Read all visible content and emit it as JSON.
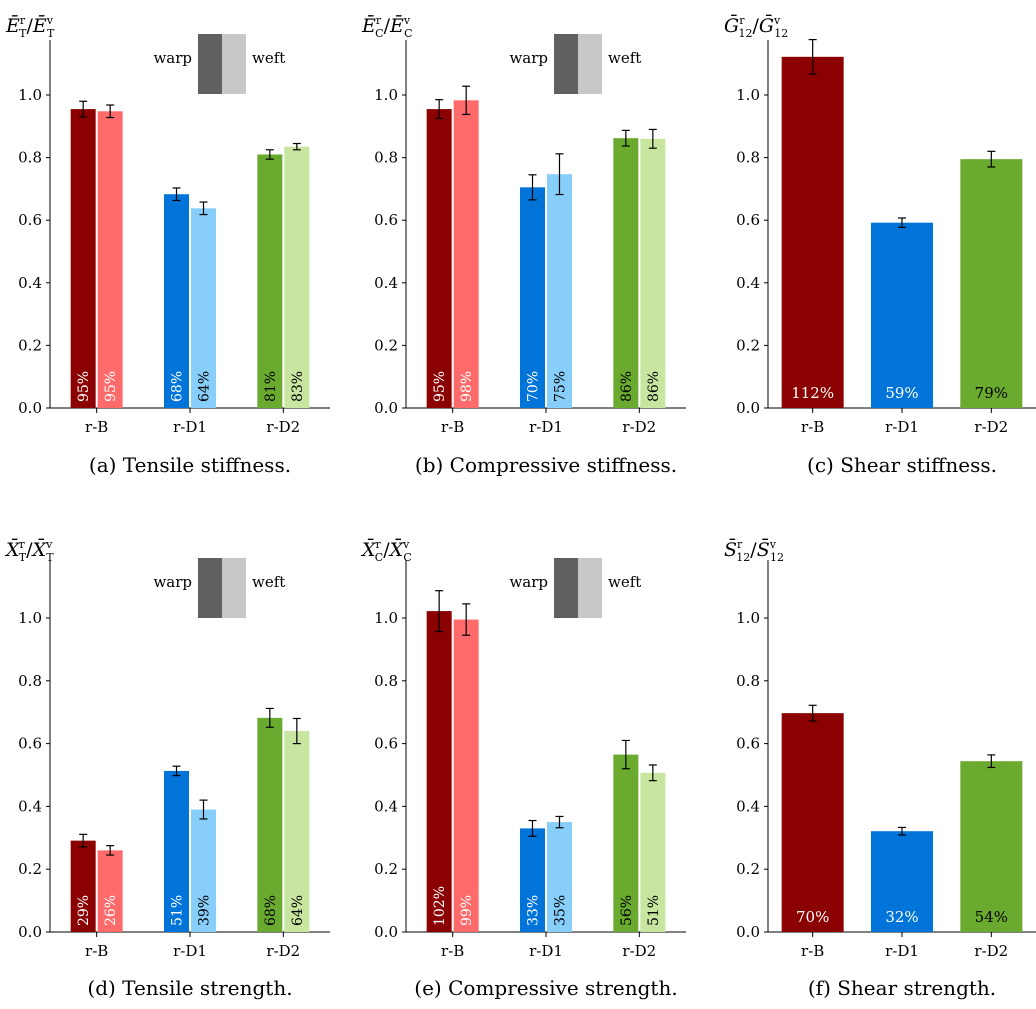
{
  "legend": {
    "warp": "warp",
    "weft": "weft",
    "warp_color": "#606060",
    "weft_color": "#c8c8c8"
  },
  "colors": {
    "r-B": {
      "warp": "#8b0000",
      "weft": "#ff6b6b"
    },
    "r-D1": {
      "warp": "#0074d9",
      "weft": "#87cefa"
    },
    "r-D2": {
      "warp": "#6aaa2e",
      "weft": "#c8e6a0"
    }
  },
  "chart_data": [
    {
      "type": "bar",
      "panel": "a",
      "caption": "(a) Tensile stiffness.",
      "ylabel": "Ē_T^r/Ē_T^v",
      "ylim": [
        0,
        1.15
      ],
      "yticks": [
        "0.0",
        "0.2",
        "0.4",
        "0.6",
        "0.8",
        "1.0"
      ],
      "legend": true,
      "label_rotation": "vertical",
      "categories": [
        "r-B",
        "r-D1",
        "r-D2"
      ],
      "series": [
        {
          "name": "warp",
          "values": [
            0.955,
            0.683,
            0.81
          ],
          "errors": [
            0.025,
            0.02,
            0.015
          ],
          "labels": [
            "95%",
            "68%",
            "81%"
          ]
        },
        {
          "name": "weft",
          "values": [
            0.948,
            0.638,
            0.835
          ],
          "errors": [
            0.02,
            0.02,
            0.01
          ],
          "labels": [
            "95%",
            "64%",
            "83%"
          ]
        }
      ]
    },
    {
      "type": "bar",
      "panel": "b",
      "caption": "(b) Compressive stiffness.",
      "ylabel": "Ē_C^r/Ē_C^v",
      "ylim": [
        0,
        1.15
      ],
      "yticks": [
        "0.0",
        "0.2",
        "0.4",
        "0.6",
        "0.8",
        "1.0"
      ],
      "legend": true,
      "label_rotation": "vertical",
      "categories": [
        "r-B",
        "r-D1",
        "r-D2"
      ],
      "series": [
        {
          "name": "warp",
          "values": [
            0.955,
            0.705,
            0.862
          ],
          "errors": [
            0.03,
            0.04,
            0.025
          ],
          "labels": [
            "95%",
            "70%",
            "86%"
          ]
        },
        {
          "name": "weft",
          "values": [
            0.983,
            0.747,
            0.86
          ],
          "errors": [
            0.045,
            0.065,
            0.03
          ],
          "labels": [
            "98%",
            "75%",
            "86%"
          ]
        }
      ]
    },
    {
      "type": "bar",
      "panel": "c",
      "caption": "(c) Shear stiffness.",
      "ylabel": "Ḡ_12^r/Ḡ_12^v",
      "ylim": [
        0,
        1.15
      ],
      "yticks": [
        "0.0",
        "0.2",
        "0.4",
        "0.6",
        "0.8",
        "1.0"
      ],
      "legend": false,
      "label_rotation": "horizontal",
      "categories": [
        "r-B",
        "r-D1",
        "r-D2"
      ],
      "series": [
        {
          "name": "",
          "values": [
            1.122,
            0.592,
            0.795
          ],
          "errors": [
            0.055,
            0.015,
            0.025
          ],
          "labels": [
            "112%",
            "59%",
            "79%"
          ]
        }
      ]
    },
    {
      "type": "bar",
      "panel": "d",
      "caption": "(d) Tensile strength.",
      "ylabel": "X̄_T^r/X̄_T^v",
      "ylim": [
        0,
        1.15
      ],
      "yticks": [
        "0.0",
        "0.2",
        "0.4",
        "0.6",
        "0.8",
        "1.0"
      ],
      "legend": true,
      "label_rotation": "vertical",
      "categories": [
        "r-B",
        "r-D1",
        "r-D2"
      ],
      "series": [
        {
          "name": "warp",
          "values": [
            0.291,
            0.513,
            0.682
          ],
          "errors": [
            0.02,
            0.015,
            0.03
          ],
          "labels": [
            "29%",
            "51%",
            "68%"
          ]
        },
        {
          "name": "weft",
          "values": [
            0.26,
            0.39,
            0.64
          ],
          "errors": [
            0.015,
            0.03,
            0.04
          ],
          "labels": [
            "26%",
            "39%",
            "64%"
          ]
        }
      ]
    },
    {
      "type": "bar",
      "panel": "e",
      "caption": "(e) Compressive strength.",
      "ylabel": "X̄_C^r/X̄_C^v",
      "ylim": [
        0,
        1.15
      ],
      "yticks": [
        "0.0",
        "0.2",
        "0.4",
        "0.6",
        "0.8",
        "1.0"
      ],
      "legend": true,
      "label_rotation": "vertical",
      "categories": [
        "r-B",
        "r-D1",
        "r-D2"
      ],
      "series": [
        {
          "name": "warp",
          "values": [
            1.022,
            0.33,
            0.565
          ],
          "errors": [
            0.065,
            0.025,
            0.045
          ],
          "labels": [
            "102%",
            "33%",
            "56%"
          ]
        },
        {
          "name": "weft",
          "values": [
            0.995,
            0.35,
            0.507
          ],
          "errors": [
            0.05,
            0.018,
            0.025
          ],
          "labels": [
            "99%",
            "35%",
            "51%"
          ]
        }
      ]
    },
    {
      "type": "bar",
      "panel": "f",
      "caption": "(f) Shear strength.",
      "ylabel": "S̄_12^r/S̄_12^v",
      "ylim": [
        0,
        1.15
      ],
      "yticks": [
        "0.0",
        "0.2",
        "0.4",
        "0.6",
        "0.8",
        "1.0"
      ],
      "legend": false,
      "label_rotation": "horizontal",
      "categories": [
        "r-B",
        "r-D1",
        "r-D2"
      ],
      "series": [
        {
          "name": "",
          "values": [
            0.697,
            0.321,
            0.544
          ],
          "errors": [
            0.025,
            0.012,
            0.02
          ],
          "labels": [
            "70%",
            "32%",
            "54%"
          ]
        }
      ]
    }
  ]
}
